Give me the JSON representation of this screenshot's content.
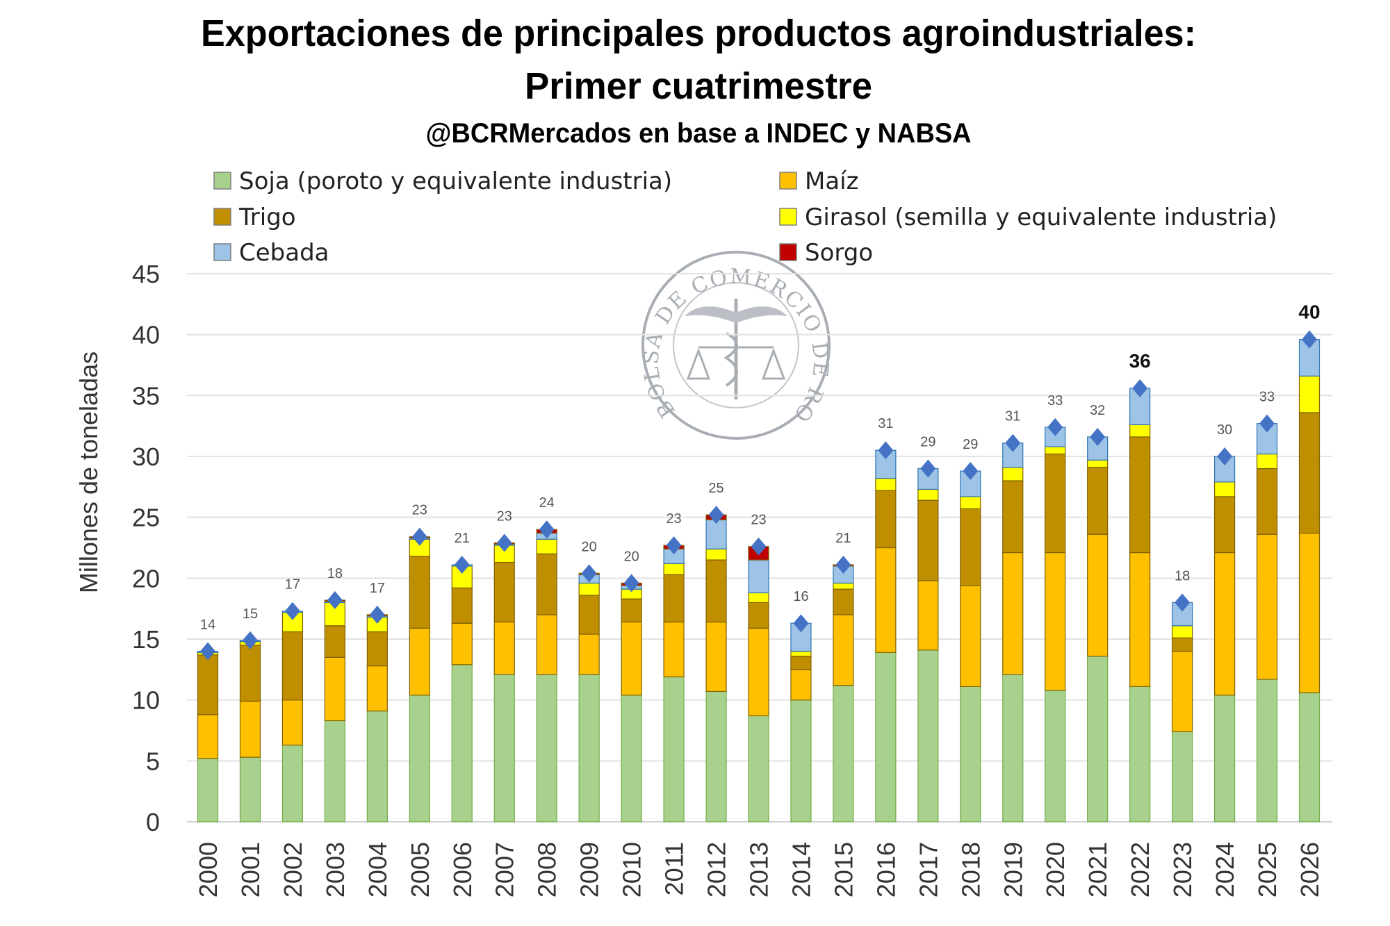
{
  "chart_data": {
    "type": "bar",
    "stacked": true,
    "title": "Exportaciones de principales productos agroindustriales:",
    "title_line2": "Primer cuatrimestre",
    "subtitle": "@BCRMercados en base a INDEC y NABSA",
    "xlabel": "",
    "ylabel": "Millones de toneladas",
    "ylim": [
      0,
      45
    ],
    "yticks": [
      0,
      5,
      10,
      15,
      20,
      25,
      30,
      35,
      40,
      45
    ],
    "grid": true,
    "legend_position": "top",
    "categories": [
      "2000",
      "2001",
      "2002",
      "2003",
      "2004",
      "2005",
      "2006",
      "2007",
      "2008",
      "2009",
      "2010",
      "2011",
      "2012",
      "2013",
      "2014",
      "2015",
      "2016",
      "2017",
      "2018",
      "2019",
      "2020",
      "2021",
      "2022",
      "2023",
      "2024",
      "2025",
      "2026"
    ],
    "series": [
      {
        "name": "Soja (poroto y equivalente industria)",
        "color": "#a9d18e",
        "values": [
          5.2,
          5.3,
          6.3,
          8.3,
          9.1,
          10.4,
          12.9,
          12.1,
          12.1,
          12.1,
          10.4,
          11.9,
          10.7,
          8.7,
          10.0,
          11.2,
          13.9,
          14.1,
          11.1,
          12.1,
          10.8,
          13.6,
          11.1,
          7.4,
          10.4,
          11.7,
          10.6
        ]
      },
      {
        "name": "Maíz",
        "color": "#ffc000",
        "values": [
          3.6,
          4.6,
          3.7,
          5.2,
          3.7,
          5.5,
          3.4,
          4.3,
          4.9,
          3.3,
          6.0,
          4.5,
          5.7,
          7.2,
          2.5,
          5.8,
          8.6,
          5.7,
          8.3,
          10.0,
          11.3,
          10.0,
          11.0,
          6.6,
          11.7,
          11.9,
          13.1
        ]
      },
      {
        "name": "Trigo",
        "color": "#bf8f00",
        "values": [
          4.9,
          4.6,
          5.6,
          2.6,
          2.8,
          5.9,
          2.9,
          4.9,
          5.0,
          3.2,
          1.9,
          3.9,
          5.1,
          2.1,
          1.1,
          2.1,
          4.7,
          6.6,
          6.3,
          5.9,
          8.1,
          5.5,
          9.5,
          1.1,
          4.6,
          5.4,
          9.9
        ]
      },
      {
        "name": "Girasol (semilla y equivalente industria)",
        "color": "#ffff00",
        "values": [
          0.2,
          0.3,
          1.6,
          1.9,
          1.2,
          1.4,
          1.8,
          1.4,
          1.2,
          1.0,
          0.8,
          0.9,
          0.9,
          0.8,
          0.4,
          0.5,
          1.0,
          0.9,
          1.0,
          1.1,
          0.6,
          0.6,
          1.0,
          1.0,
          1.2,
          1.2,
          3.0
        ]
      },
      {
        "name": "Cebada",
        "color": "#9dc3e6",
        "values": [
          0.1,
          0.1,
          0.1,
          0.1,
          0.1,
          0.1,
          0.1,
          0.1,
          0.5,
          0.7,
          0.3,
          1.2,
          2.4,
          2.7,
          2.3,
          1.4,
          2.3,
          1.7,
          2.1,
          2.0,
          1.6,
          1.9,
          3.0,
          1.9,
          2.1,
          2.5,
          3.0
        ]
      },
      {
        "name": "Sorgo",
        "color": "#c00000",
        "values": [
          0.0,
          0.0,
          0.0,
          0.1,
          0.1,
          0.1,
          0.0,
          0.1,
          0.3,
          0.1,
          0.2,
          0.3,
          0.4,
          1.1,
          0.0,
          0.1,
          0.0,
          0.0,
          0.0,
          0.0,
          0.0,
          0.0,
          0.0,
          0.0,
          0.0,
          0.0,
          0.0
        ]
      }
    ],
    "totals": {
      "marker": "diamond",
      "color": "#4472c4",
      "labels": [
        "14",
        "15",
        "17",
        "18",
        "17",
        "23",
        "21",
        "23",
        "24",
        "20",
        "20",
        "23",
        "25",
        "23",
        "16",
        "21",
        "31",
        "29",
        "29",
        "31",
        "33",
        "32",
        "36",
        "18",
        "30",
        "33",
        "40"
      ],
      "bold_labels": [
        "2022",
        "2026"
      ]
    }
  },
  "legend": {
    "order": [
      0,
      1,
      4,
      2,
      3,
      5
    ]
  },
  "watermark": {
    "text": "BOLSA DE COMERCIO DE ROSARIO",
    "color": "#9aa0a8"
  }
}
